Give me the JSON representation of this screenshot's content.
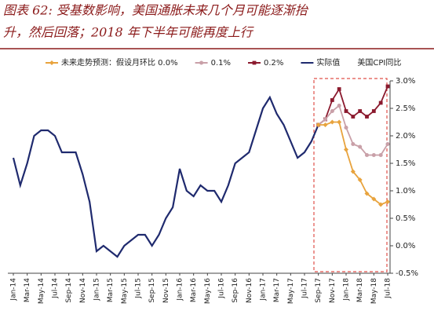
{
  "chart_data": {
    "type": "line",
    "title": "图表 62: 受基数影响，美国通胀未来几个月可能逐渐抬升，然后回落；2018 年下半年可能再度上行",
    "y_label": "美国CPI同比",
    "categories": [
      "Jan-14",
      null,
      "Mar-14",
      null,
      "May-14",
      null,
      "Jul-14",
      null,
      "Sep-14",
      null,
      "Nov-14",
      null,
      "Jan-15",
      null,
      "Mar-15",
      null,
      "May-15",
      null,
      "Jul-15",
      null,
      "Sep-15",
      null,
      "Nov-15",
      null,
      "Jan-16",
      null,
      "Mar-16",
      null,
      "May-16",
      null,
      "Jul-16",
      null,
      "Sep-16",
      null,
      "Nov-16",
      null,
      "Jan-17",
      null,
      "Mar-17",
      null,
      "May-17",
      null,
      "Jul-17",
      null,
      "Sep-17",
      null,
      "Nov-17",
      null,
      "Jan-18",
      null,
      "Mar-18",
      null,
      "May-18",
      null,
      "Jul-18"
    ],
    "ylim": [
      -0.5,
      3.0
    ],
    "yticks": [
      {
        "value": -0.5,
        "label": "-0.5%"
      },
      {
        "value": 0.0,
        "label": "0.0%"
      },
      {
        "value": 0.5,
        "label": "0.5%"
      },
      {
        "value": 1.0,
        "label": "1.0%"
      },
      {
        "value": 1.5,
        "label": "1.5%"
      },
      {
        "value": 2.0,
        "label": "2.0%"
      },
      {
        "value": 2.5,
        "label": "2.5%"
      },
      {
        "value": 3.0,
        "label": "3.0%"
      }
    ],
    "y_axis_side": "right",
    "grid": false,
    "series": [
      {
        "name": "未来走势预测：假设月环比 0.0%",
        "color": "#e8a33d",
        "marker": "diamond",
        "values": [
          null,
          null,
          null,
          null,
          null,
          null,
          null,
          null,
          null,
          null,
          null,
          null,
          null,
          null,
          null,
          null,
          null,
          null,
          null,
          null,
          null,
          null,
          null,
          null,
          null,
          null,
          null,
          null,
          null,
          null,
          null,
          null,
          null,
          null,
          null,
          null,
          null,
          null,
          null,
          null,
          null,
          null,
          null,
          null,
          2.2,
          2.2,
          2.25,
          2.25,
          1.75,
          1.35,
          1.2,
          0.95,
          0.85,
          0.75,
          0.8
        ]
      },
      {
        "name": "0.1%",
        "color": "#c9a0a8",
        "marker": "circle",
        "values": [
          null,
          null,
          null,
          null,
          null,
          null,
          null,
          null,
          null,
          null,
          null,
          null,
          null,
          null,
          null,
          null,
          null,
          null,
          null,
          null,
          null,
          null,
          null,
          null,
          null,
          null,
          null,
          null,
          null,
          null,
          null,
          null,
          null,
          null,
          null,
          null,
          null,
          null,
          null,
          null,
          null,
          null,
          null,
          null,
          2.2,
          2.3,
          2.45,
          2.55,
          2.15,
          1.85,
          1.8,
          1.65,
          1.65,
          1.65,
          1.85
        ]
      },
      {
        "name": "0.2%",
        "color": "#8b1a2e",
        "marker": "square",
        "values": [
          null,
          null,
          null,
          null,
          null,
          null,
          null,
          null,
          null,
          null,
          null,
          null,
          null,
          null,
          null,
          null,
          null,
          null,
          null,
          null,
          null,
          null,
          null,
          null,
          null,
          null,
          null,
          null,
          null,
          null,
          null,
          null,
          null,
          null,
          null,
          null,
          null,
          null,
          null,
          null,
          null,
          null,
          null,
          null,
          2.2,
          2.3,
          2.65,
          2.85,
          2.45,
          2.35,
          2.45,
          2.35,
          2.45,
          2.6,
          2.9
        ]
      },
      {
        "name": "实际值",
        "color": "#1f2a6e",
        "marker": "none",
        "values": [
          1.6,
          1.1,
          1.5,
          2.0,
          2.1,
          2.1,
          2.0,
          1.7,
          1.7,
          1.7,
          1.3,
          0.8,
          -0.1,
          0.0,
          -0.1,
          -0.2,
          0.0,
          0.1,
          0.2,
          0.2,
          0.0,
          0.2,
          0.5,
          0.7,
          1.4,
          1.0,
          0.9,
          1.1,
          1.0,
          1.0,
          0.8,
          1.1,
          1.5,
          1.6,
          1.7,
          2.1,
          2.5,
          2.7,
          2.4,
          2.2,
          1.9,
          1.6,
          1.7,
          1.9,
          2.2,
          null,
          null,
          null,
          null,
          null,
          null,
          null,
          null,
          null,
          null
        ]
      }
    ]
  }
}
